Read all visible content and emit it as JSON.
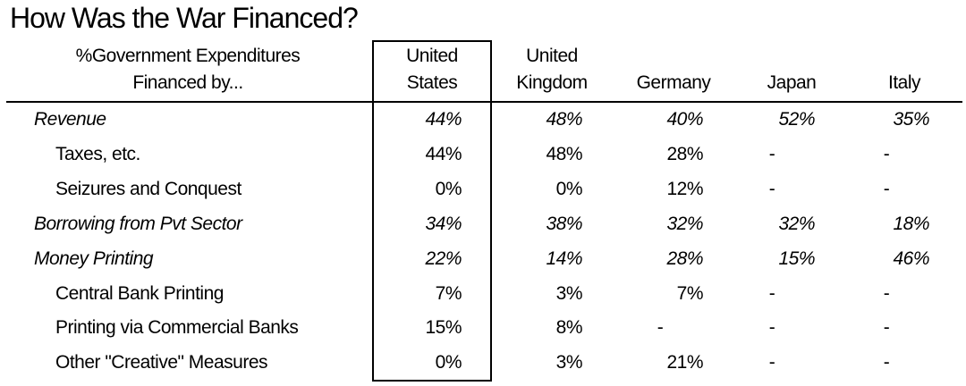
{
  "title": "How Was the War Financed?",
  "header": {
    "label_line1": "%Government Expenditures",
    "label_line2": "Financed by...",
    "columns": [
      {
        "line1": "United",
        "line2": "States"
      },
      {
        "line1": "United",
        "line2": "Kingdom"
      },
      {
        "line1": "",
        "line2": "Germany"
      },
      {
        "line1": "",
        "line2": "Japan"
      },
      {
        "line1": "",
        "line2": "Italy"
      }
    ]
  },
  "rows": [
    {
      "label": "Revenue",
      "type": "main",
      "values": [
        "44%",
        "48%",
        "40%",
        "52%",
        "35%"
      ]
    },
    {
      "label": "Taxes, etc.",
      "type": "sub",
      "values": [
        "44%",
        "48%",
        "28%",
        "-",
        "-"
      ]
    },
    {
      "label": "Seizures and Conquest",
      "type": "sub",
      "values": [
        "0%",
        "0%",
        "12%",
        "-",
        "-"
      ]
    },
    {
      "label": "Borrowing from Pvt Sector",
      "type": "main",
      "values": [
        "34%",
        "38%",
        "32%",
        "32%",
        "18%"
      ]
    },
    {
      "label": "Money Printing",
      "type": "main",
      "values": [
        "22%",
        "14%",
        "28%",
        "15%",
        "46%"
      ]
    },
    {
      "label": "Central Bank Printing",
      "type": "sub",
      "values": [
        "7%",
        "3%",
        "7%",
        "-",
        "-"
      ]
    },
    {
      "label": "Printing via Commercial Banks",
      "type": "sub",
      "values": [
        "15%",
        "8%",
        "-",
        "-",
        "-"
      ]
    },
    {
      "label": "Other \"Creative\" Measures",
      "type": "sub",
      "values": [
        "0%",
        "3%",
        "21%",
        "-",
        "-"
      ]
    }
  ]
}
